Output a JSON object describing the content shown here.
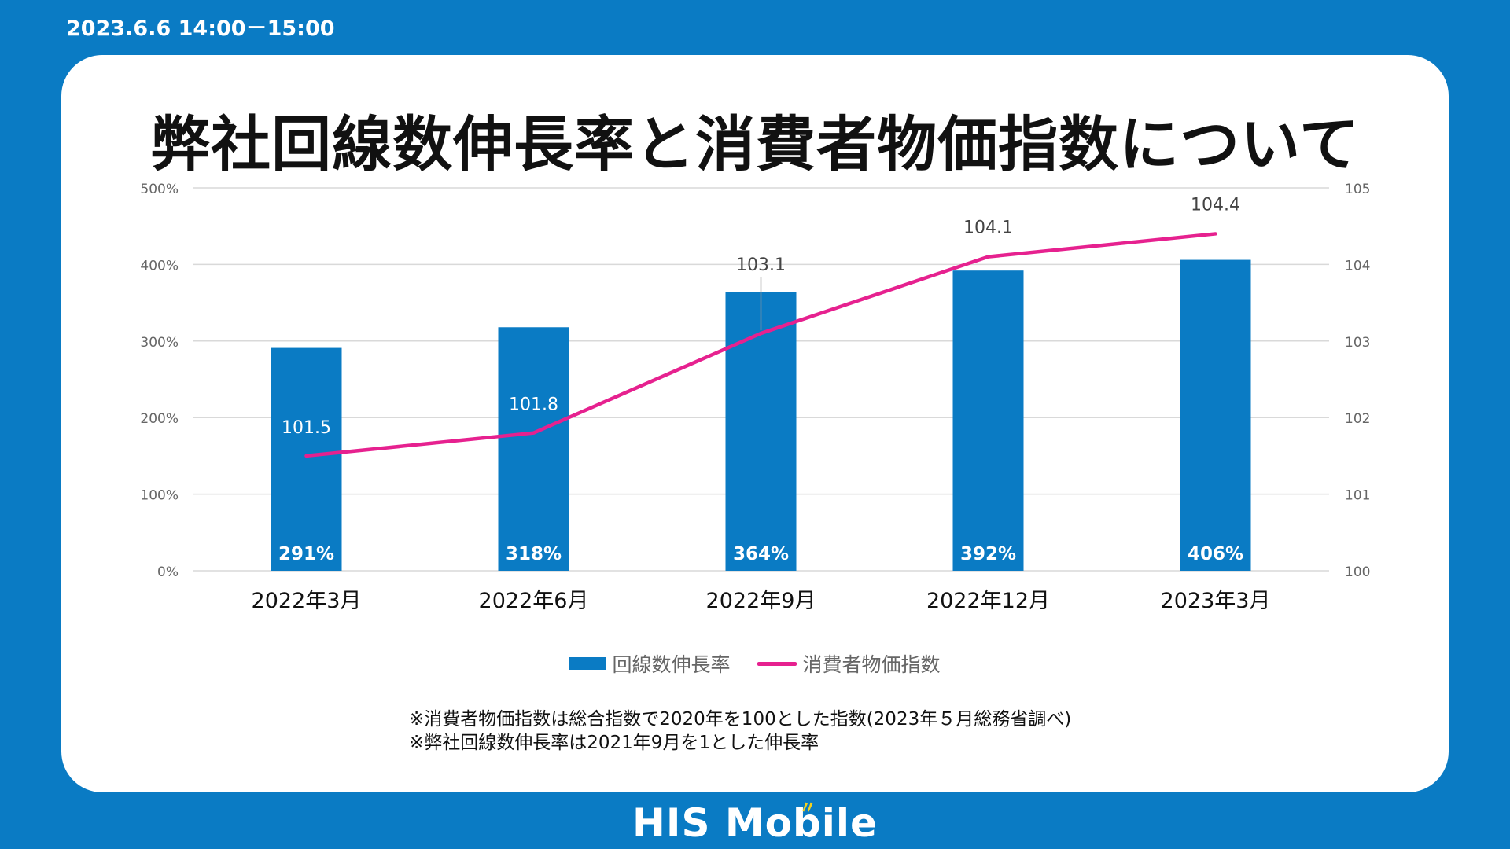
{
  "header": {
    "datetime": "2023.6.6 14:00－15:00"
  },
  "title": "弊社回線数伸長率と消費者物価指数について",
  "colors": {
    "background": "#0a7bc4",
    "bar": "#0a7bc4",
    "line": "#e6218f",
    "grid": "#d9d9d9",
    "axis_text": "#666666"
  },
  "chart_data": {
    "type": "bar",
    "title": "弊社回線数伸長率と消費者物価指数について",
    "categories": [
      "2022年3月",
      "2022年6月",
      "2022年9月",
      "2022年12月",
      "2023年3月"
    ],
    "series": [
      {
        "name": "回線数伸長率",
        "type": "bar",
        "axis": "left",
        "values": [
          291,
          318,
          364,
          392,
          406
        ],
        "labels": [
          "291%",
          "318%",
          "364%",
          "392%",
          "406%"
        ]
      },
      {
        "name": "消費者物価指数",
        "type": "line",
        "axis": "right",
        "values": [
          101.5,
          101.8,
          103.1,
          104.1,
          104.4
        ],
        "labels": [
          "101.5",
          "101.8",
          "103.1",
          "104.1",
          "104.4"
        ]
      }
    ],
    "y_left": {
      "range": [
        0,
        500
      ],
      "ticks": [
        "0%",
        "100%",
        "200%",
        "300%",
        "400%",
        "500%"
      ]
    },
    "y_right": {
      "range": [
        100,
        105
      ],
      "ticks": [
        "100",
        "101",
        "102",
        "103",
        "104",
        "105"
      ]
    },
    "grid": true,
    "legend_position": "bottom"
  },
  "legend": {
    "bar_label": "回線数伸長率",
    "line_label": "消費者物価指数"
  },
  "notes": [
    "※消費者物価指数は総合指数で2020年を100とした指数(2023年５月総務省調べ)",
    "※弊社回線数伸長率は2021年9月を1とした伸長率"
  ],
  "brand": {
    "name": "HIS Mobile",
    "mark": "〃"
  }
}
